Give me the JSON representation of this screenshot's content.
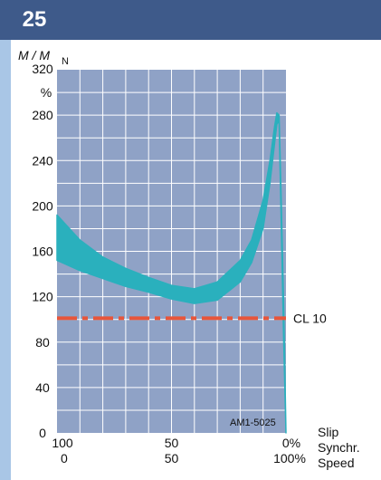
{
  "figure_number": "25",
  "colors": {
    "header": "#3e5a8a",
    "plot_bg": "#8fa2c6",
    "grid": "#ffffff",
    "band": "#2ab0bd",
    "cl_line": "#e8553a",
    "strip": "#a9c6e6"
  },
  "chart_data": {
    "type": "area",
    "ylabel_main": "M / M",
    "ylabel_sub": "N",
    "y_unit": "%",
    "ylim": [
      0,
      320
    ],
    "yticks": [
      0,
      40,
      80,
      120,
      160,
      200,
      240,
      280,
      320
    ],
    "x_slip_ticks": [
      "100",
      "50",
      "0%"
    ],
    "x_speed_ticks": [
      "0",
      "50",
      "100%"
    ],
    "x_labels": [
      "Slip",
      "Synchr.",
      "Speed"
    ],
    "xlim": [
      0,
      100
    ],
    "grid": true,
    "band": {
      "x": [
        0,
        10,
        20,
        30,
        40,
        50,
        60,
        70,
        80,
        85,
        90,
        93,
        95,
        96,
        97,
        98,
        99,
        100
      ],
      "upper": [
        192,
        170,
        155,
        145,
        137,
        130,
        127,
        133,
        152,
        170,
        205,
        240,
        270,
        282,
        280,
        200,
        110,
        0
      ],
      "lower": [
        152,
        143,
        136,
        129,
        124,
        118,
        114,
        117,
        133,
        150,
        180,
        220,
        255,
        272,
        275,
        180,
        80,
        0
      ]
    },
    "reference_line": {
      "label": "CL 10",
      "value": 101
    },
    "annotation": "AM1-5025"
  }
}
